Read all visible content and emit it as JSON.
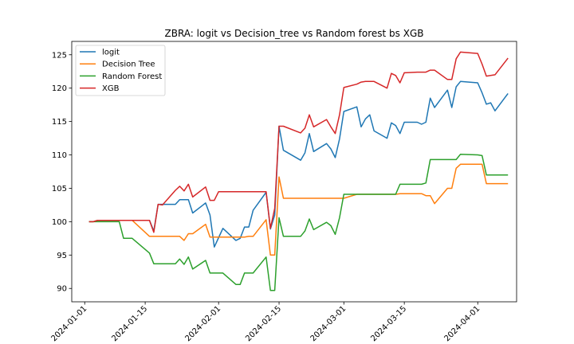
{
  "chart_data": {
    "type": "line",
    "title": "ZBRA: logit vs Decision_tree vs Random forest bs XGB",
    "xlabel": "",
    "ylabel": "",
    "xlim": [
      "2023-12-29",
      "2024-04-10"
    ],
    "ylim": [
      88,
      127
    ],
    "yticks": [
      90,
      95,
      100,
      105,
      110,
      115,
      120,
      125
    ],
    "xticks": [
      "2024-01-01",
      "2024-01-15",
      "2024-02-01",
      "2024-02-15",
      "2024-03-01",
      "2024-03-15",
      "2024-04-01"
    ],
    "grid": false,
    "legend": "top-left",
    "series": [
      {
        "name": "logit",
        "color": "#1f77b4",
        "x": [
          "2024-01-02",
          "2024-01-03",
          "2024-01-04",
          "2024-01-05",
          "2024-01-08",
          "2024-01-09",
          "2024-01-10",
          "2024-01-11",
          "2024-01-12",
          "2024-01-16",
          "2024-01-17",
          "2024-01-18",
          "2024-01-19",
          "2024-01-22",
          "2024-01-23",
          "2024-01-24",
          "2024-01-25",
          "2024-01-26",
          "2024-01-29",
          "2024-01-30",
          "2024-01-31",
          "2024-02-01",
          "2024-02-02",
          "2024-02-05",
          "2024-02-06",
          "2024-02-07",
          "2024-02-08",
          "2024-02-09",
          "2024-02-12",
          "2024-02-13",
          "2024-02-14",
          "2024-02-15",
          "2024-02-16",
          "2024-02-20",
          "2024-02-21",
          "2024-02-22",
          "2024-02-23",
          "2024-02-26",
          "2024-02-27",
          "2024-02-28",
          "2024-02-29",
          "2024-03-01",
          "2024-03-04",
          "2024-03-05",
          "2024-03-06",
          "2024-03-07",
          "2024-03-08",
          "2024-03-11",
          "2024-03-12",
          "2024-03-13",
          "2024-03-14",
          "2024-03-15",
          "2024-03-18",
          "2024-03-19",
          "2024-03-20",
          "2024-03-21",
          "2024-03-22",
          "2024-03-25",
          "2024-03-26",
          "2024-03-27",
          "2024-03-28",
          "2024-04-01",
          "2024-04-02",
          "2024-04-03",
          "2024-04-04",
          "2024-04-05",
          "2024-04-08"
        ],
        "y": [
          100.0,
          100.0,
          100.2,
          100.2,
          100.2,
          100.2,
          100.2,
          100.2,
          100.2,
          100.2,
          98.6,
          102.6,
          102.6,
          102.6,
          103.3,
          103.3,
          103.3,
          101.3,
          102.8,
          101.0,
          96.2,
          97.6,
          99.0,
          97.2,
          97.5,
          99.2,
          99.2,
          101.7,
          104.4,
          98.9,
          101.0,
          114.3,
          110.7,
          109.2,
          110.3,
          113.2,
          110.5,
          111.7,
          110.9,
          109.6,
          112.4,
          116.5,
          117.2,
          114.2,
          115.4,
          116.0,
          113.6,
          112.5,
          114.8,
          114.4,
          113.2,
          114.9,
          114.9,
          114.6,
          114.9,
          118.5,
          117.1,
          119.7,
          117.1,
          120.2,
          121.0,
          120.8,
          119.3,
          117.6,
          117.8,
          116.6,
          119.2
        ]
      },
      {
        "name": "Decision Tree",
        "color": "#ff7f0e",
        "x": [
          "2024-01-02",
          "2024-01-03",
          "2024-01-04",
          "2024-01-05",
          "2024-01-08",
          "2024-01-09",
          "2024-01-10",
          "2024-01-11",
          "2024-01-12",
          "2024-01-16",
          "2024-01-17",
          "2024-01-18",
          "2024-01-19",
          "2024-01-22",
          "2024-01-23",
          "2024-01-24",
          "2024-01-25",
          "2024-01-26",
          "2024-01-29",
          "2024-01-30",
          "2024-01-31",
          "2024-02-01",
          "2024-02-02",
          "2024-02-05",
          "2024-02-06",
          "2024-02-07",
          "2024-02-08",
          "2024-02-09",
          "2024-02-12",
          "2024-02-13",
          "2024-02-14",
          "2024-02-15",
          "2024-02-16",
          "2024-02-20",
          "2024-02-21",
          "2024-02-22",
          "2024-02-23",
          "2024-02-26",
          "2024-02-27",
          "2024-02-28",
          "2024-02-29",
          "2024-03-01",
          "2024-03-04",
          "2024-03-05",
          "2024-03-06",
          "2024-03-07",
          "2024-03-08",
          "2024-03-11",
          "2024-03-12",
          "2024-03-13",
          "2024-03-14",
          "2024-03-15",
          "2024-03-18",
          "2024-03-19",
          "2024-03-20",
          "2024-03-21",
          "2024-03-22",
          "2024-03-25",
          "2024-03-26",
          "2024-03-27",
          "2024-03-28",
          "2024-04-01",
          "2024-04-02",
          "2024-04-03",
          "2024-04-04",
          "2024-04-05",
          "2024-04-08"
        ],
        "y": [
          100.0,
          100.0,
          100.2,
          100.2,
          100.2,
          100.2,
          100.2,
          100.2,
          100.2,
          97.8,
          97.8,
          97.8,
          97.8,
          97.8,
          97.8,
          97.2,
          98.2,
          98.2,
          99.6,
          97.7,
          97.7,
          97.7,
          97.7,
          97.7,
          97.7,
          97.7,
          97.8,
          97.8,
          100.3,
          95.0,
          95.0,
          106.7,
          103.5,
          103.5,
          103.5,
          103.5,
          103.5,
          103.5,
          103.5,
          103.5,
          103.5,
          103.5,
          104.1,
          104.1,
          104.1,
          104.1,
          104.1,
          104.1,
          104.1,
          104.1,
          104.2,
          104.2,
          104.2,
          104.2,
          103.9,
          103.9,
          102.7,
          105.0,
          105.0,
          108.0,
          108.6,
          108.6,
          108.6,
          105.7,
          105.7,
          105.7,
          105.7
        ]
      },
      {
        "name": "Random Forest",
        "color": "#2ca02c",
        "x": [
          "2024-01-02",
          "2024-01-03",
          "2024-01-04",
          "2024-01-05",
          "2024-01-08",
          "2024-01-09",
          "2024-01-10",
          "2024-01-11",
          "2024-01-12",
          "2024-01-16",
          "2024-01-17",
          "2024-01-18",
          "2024-01-19",
          "2024-01-22",
          "2024-01-23",
          "2024-01-24",
          "2024-01-25",
          "2024-01-26",
          "2024-01-29",
          "2024-01-30",
          "2024-01-31",
          "2024-02-01",
          "2024-02-02",
          "2024-02-05",
          "2024-02-06",
          "2024-02-07",
          "2024-02-08",
          "2024-02-09",
          "2024-02-12",
          "2024-02-13",
          "2024-02-14",
          "2024-02-15",
          "2024-02-16",
          "2024-02-20",
          "2024-02-21",
          "2024-02-22",
          "2024-02-23",
          "2024-02-26",
          "2024-02-27",
          "2024-02-28",
          "2024-02-29",
          "2024-03-01",
          "2024-03-04",
          "2024-03-05",
          "2024-03-06",
          "2024-03-07",
          "2024-03-08",
          "2024-03-11",
          "2024-03-12",
          "2024-03-13",
          "2024-03-14",
          "2024-03-15",
          "2024-03-18",
          "2024-03-19",
          "2024-03-20",
          "2024-03-21",
          "2024-03-22",
          "2024-03-25",
          "2024-03-26",
          "2024-03-27",
          "2024-03-28",
          "2024-04-01",
          "2024-04-02",
          "2024-04-03",
          "2024-04-04",
          "2024-04-05",
          "2024-04-08"
        ],
        "y": [
          100.0,
          100.0,
          100.0,
          100.0,
          100.0,
          100.0,
          97.5,
          97.5,
          97.5,
          95.3,
          93.7,
          93.7,
          93.7,
          93.7,
          94.4,
          93.6,
          94.7,
          92.9,
          94.2,
          92.3,
          92.3,
          92.3,
          92.3,
          90.6,
          90.6,
          92.3,
          92.3,
          92.3,
          94.7,
          89.7,
          89.7,
          100.6,
          97.8,
          97.8,
          98.6,
          100.4,
          98.8,
          99.9,
          99.4,
          98.1,
          100.6,
          104.1,
          104.1,
          104.1,
          104.1,
          104.1,
          104.1,
          104.1,
          104.1,
          104.1,
          105.6,
          105.6,
          105.6,
          105.6,
          105.8,
          109.3,
          109.3,
          109.3,
          109.3,
          109.3,
          110.1,
          110.0,
          109.9,
          107.0,
          107.0,
          107.0,
          107.0
        ]
      },
      {
        "name": "XGB",
        "color": "#d62728",
        "x": [
          "2024-01-02",
          "2024-01-03",
          "2024-01-04",
          "2024-01-05",
          "2024-01-08",
          "2024-01-09",
          "2024-01-10",
          "2024-01-11",
          "2024-01-12",
          "2024-01-16",
          "2024-01-17",
          "2024-01-18",
          "2024-01-19",
          "2024-01-22",
          "2024-01-23",
          "2024-01-24",
          "2024-01-25",
          "2024-01-26",
          "2024-01-29",
          "2024-01-30",
          "2024-01-31",
          "2024-02-01",
          "2024-02-02",
          "2024-02-05",
          "2024-02-06",
          "2024-02-07",
          "2024-02-08",
          "2024-02-09",
          "2024-02-12",
          "2024-02-13",
          "2024-02-14",
          "2024-02-15",
          "2024-02-16",
          "2024-02-20",
          "2024-02-21",
          "2024-02-22",
          "2024-02-23",
          "2024-02-26",
          "2024-02-27",
          "2024-02-28",
          "2024-02-29",
          "2024-03-01",
          "2024-03-04",
          "2024-03-05",
          "2024-03-06",
          "2024-03-07",
          "2024-03-08",
          "2024-03-11",
          "2024-03-12",
          "2024-03-13",
          "2024-03-14",
          "2024-03-15",
          "2024-03-18",
          "2024-03-19",
          "2024-03-20",
          "2024-03-21",
          "2024-03-22",
          "2024-03-25",
          "2024-03-26",
          "2024-03-27",
          "2024-03-28",
          "2024-04-01",
          "2024-04-02",
          "2024-04-03",
          "2024-04-04",
          "2024-04-05",
          "2024-04-08"
        ],
        "y": [
          100.0,
          100.0,
          100.2,
          100.2,
          100.2,
          100.2,
          100.2,
          100.2,
          100.2,
          100.2,
          98.4,
          102.6,
          102.5,
          104.7,
          105.3,
          104.6,
          105.6,
          103.7,
          105.2,
          103.2,
          103.2,
          104.5,
          104.5,
          104.5,
          104.5,
          104.5,
          104.5,
          104.5,
          104.5,
          99.0,
          102.0,
          114.3,
          114.3,
          113.3,
          114.0,
          116.0,
          114.2,
          115.3,
          114.2,
          113.2,
          116.0,
          120.1,
          120.6,
          120.9,
          121.0,
          121.0,
          121.0,
          120.0,
          122.2,
          121.9,
          120.8,
          122.3,
          122.4,
          122.4,
          122.4,
          122.7,
          122.7,
          121.3,
          121.3,
          124.4,
          125.4,
          125.2,
          123.6,
          121.8,
          121.9,
          122.0,
          124.5
        ]
      }
    ]
  }
}
